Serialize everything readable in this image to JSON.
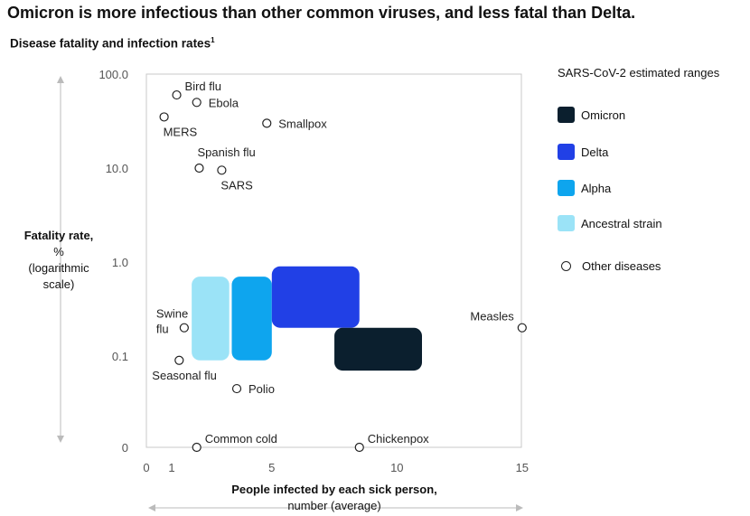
{
  "title": "Omicron is more infectious than other common viruses, and less fatal than Delta.",
  "subtitle": "Disease fatality and infection rates",
  "subtitle_footnote": "1",
  "y_axis": {
    "label_bold": "Fatality rate,",
    "label_rest": " %",
    "label_note": "(logarithmic scale)"
  },
  "x_axis": {
    "label_bold": "People infected by each sick person,",
    "label_rest": "number (average)"
  },
  "legend": {
    "title": "SARS-CoV-2 estimated ranges",
    "items": [
      {
        "label": "Omicron",
        "color": "#0b1f2e"
      },
      {
        "label": "Delta",
        "color": "#2140e6"
      },
      {
        "label": "Alpha",
        "color": "#0ea5ee"
      },
      {
        "label": "Ancestral strain",
        "color": "#9be3f7"
      }
    ],
    "other_label": "Other diseases"
  },
  "chart_data": {
    "type": "scatter",
    "title": "Omicron is more infectious than other common viruses, and less fatal than Delta.",
    "subtitle": "Disease fatality and infection rates",
    "xlabel": "People infected by each sick person, number (average)",
    "ylabel": "Fatality rate, % (logarithmic scale)",
    "x_ticks": [
      0,
      1,
      5,
      10,
      15
    ],
    "x_tick_labels": [
      "0",
      "1",
      "5",
      "10",
      "15"
    ],
    "xlim": [
      0,
      15
    ],
    "y_scale": "log",
    "y_ticks": [
      0,
      0.1,
      1.0,
      10.0,
      100.0
    ],
    "y_tick_labels": [
      "0",
      "0.1",
      "1.0",
      "10.0",
      "100.0"
    ],
    "ylim": [
      0,
      100
    ],
    "legend_position": "right",
    "points": [
      {
        "name": "Bird flu",
        "x": 1.2,
        "y": 60,
        "label_pos": "right-up"
      },
      {
        "name": "Ebola",
        "x": 2.0,
        "y": 50,
        "label_pos": "right"
      },
      {
        "name": "MERS",
        "x": 0.7,
        "y": 35,
        "label_pos": "below"
      },
      {
        "name": "Smallpox",
        "x": 4.8,
        "y": 30,
        "label_pos": "right"
      },
      {
        "name": "Spanish flu",
        "x": 2.1,
        "y": 10,
        "label_pos": "above"
      },
      {
        "name": "SARS",
        "x": 3.0,
        "y": 9.5,
        "label_pos": "below"
      },
      {
        "name": "Swine flu",
        "x": 1.5,
        "y": 0.2,
        "label_pos": "left"
      },
      {
        "name": "Seasonal flu",
        "x": 1.3,
        "y": 0.09,
        "label_pos": "below"
      },
      {
        "name": "Polio",
        "x": 3.6,
        "y": 0.045,
        "label_pos": "right"
      },
      {
        "name": "Measles",
        "x": 15,
        "y": 0.2,
        "label_pos": "left-up"
      },
      {
        "name": "Common cold",
        "x": 2.0,
        "y": 0,
        "label_pos": "right-up"
      },
      {
        "name": "Chickenpox",
        "x": 8.5,
        "y": 0,
        "label_pos": "right-up"
      }
    ],
    "ranges": [
      {
        "name": "Ancestral strain",
        "x": [
          1.8,
          3.3
        ],
        "y": [
          0.09,
          0.7
        ],
        "color": "#9be3f7"
      },
      {
        "name": "Alpha",
        "x": [
          3.4,
          5.0
        ],
        "y": [
          0.09,
          0.7
        ],
        "color": "#0ea5ee"
      },
      {
        "name": "Delta",
        "x": [
          5.0,
          8.5
        ],
        "y": [
          0.2,
          0.9
        ],
        "color": "#2140e6"
      },
      {
        "name": "Omicron",
        "x": [
          7.5,
          11.0
        ],
        "y": [
          0.07,
          0.2
        ],
        "color": "#0b1f2e"
      }
    ]
  }
}
